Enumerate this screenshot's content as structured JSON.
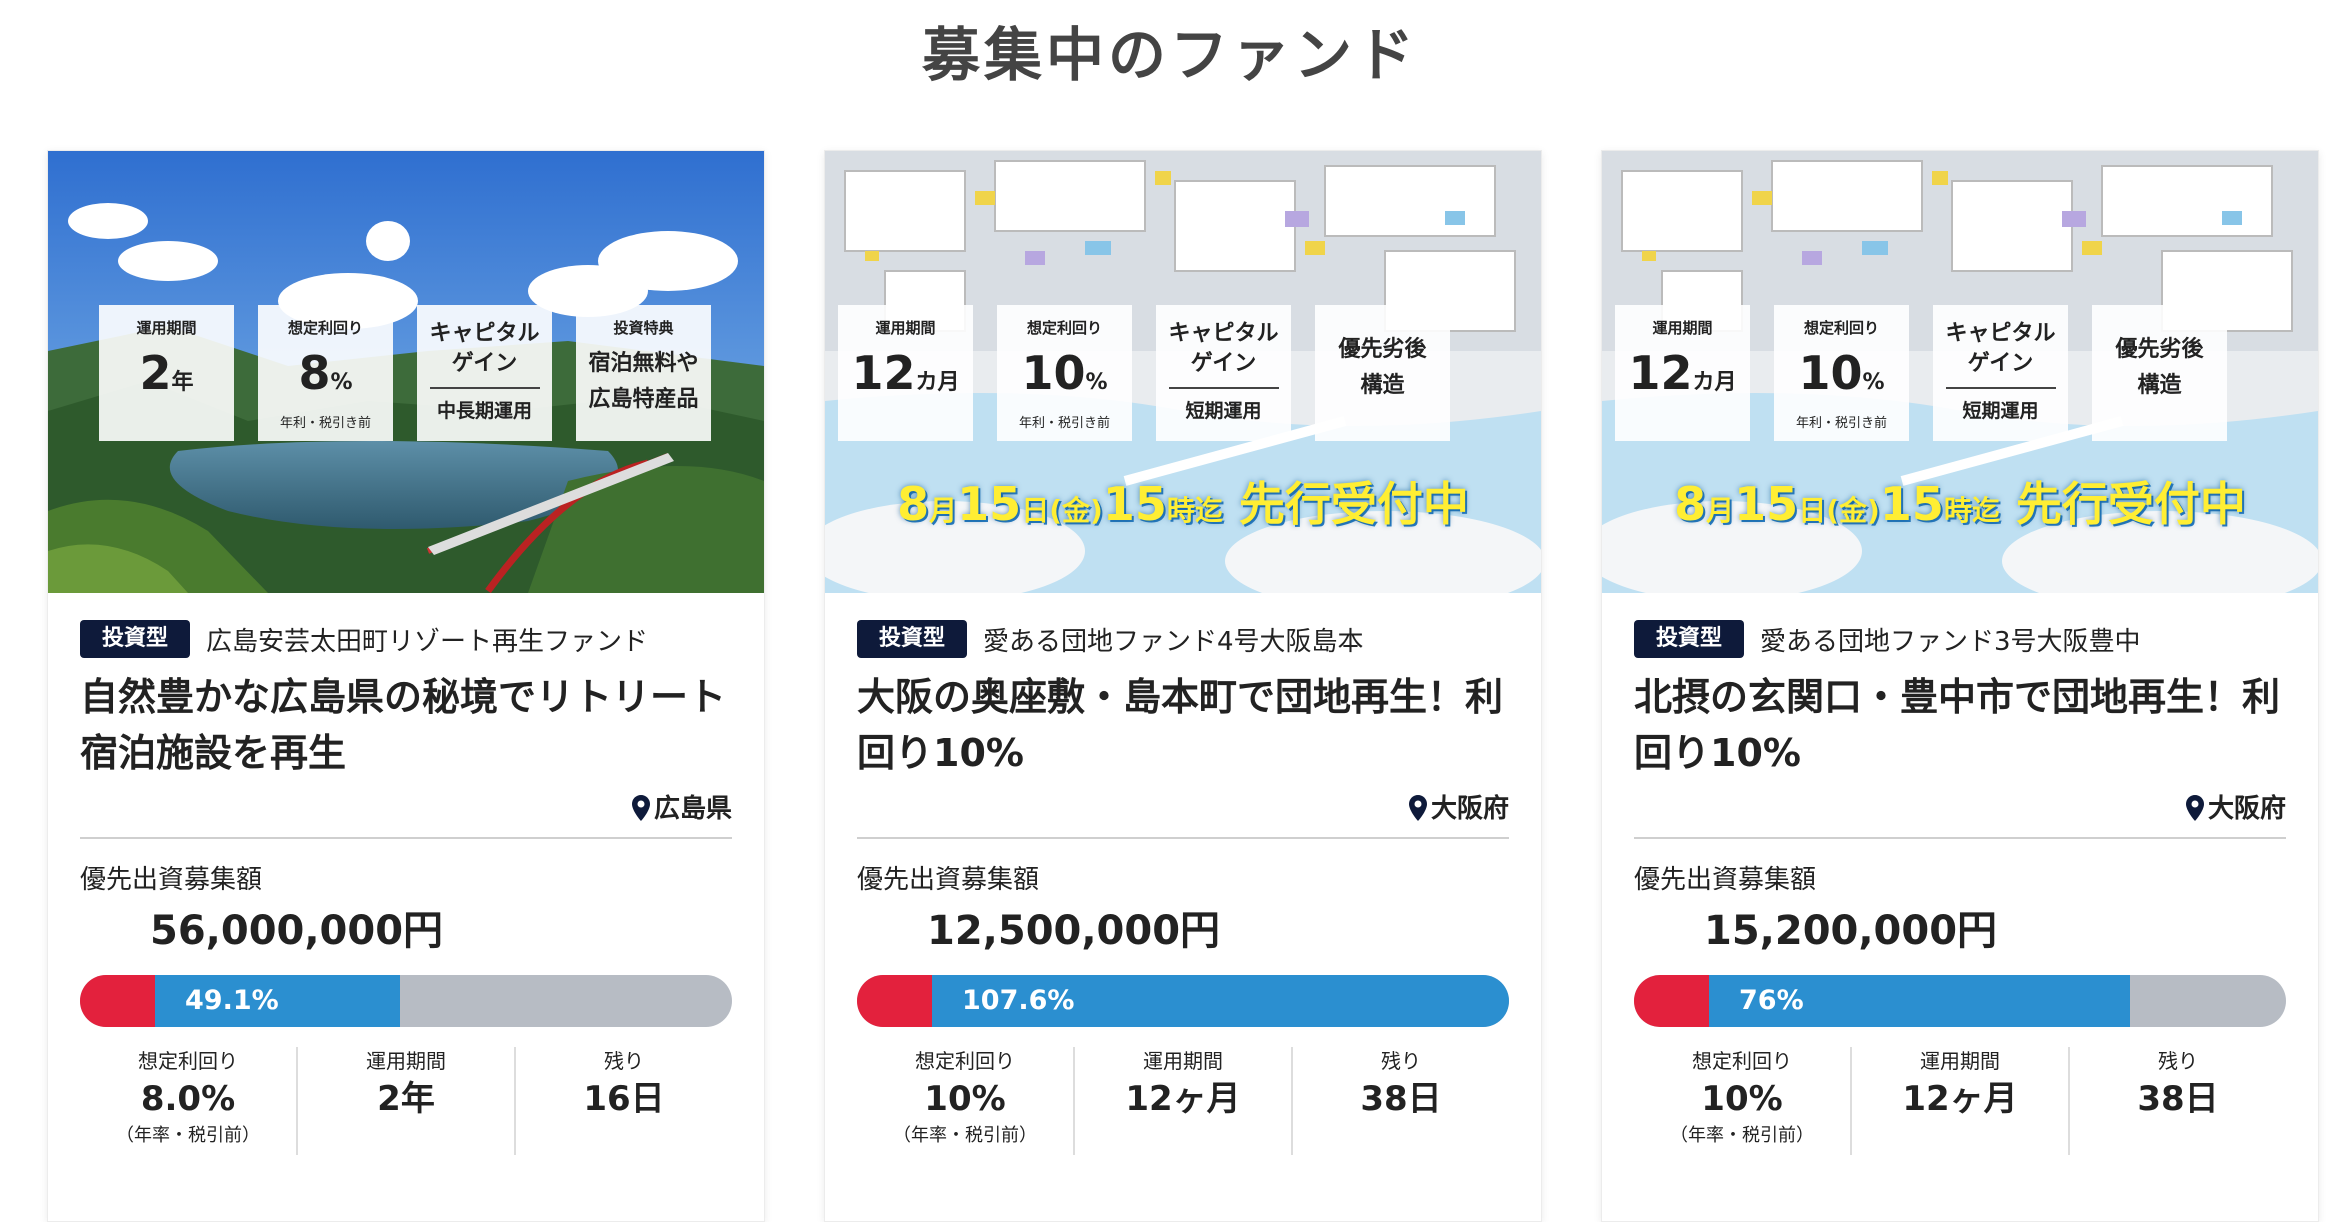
{
  "page": {
    "title": "募集中のファンド"
  },
  "colors": {
    "accent_blue": "#2b8fd0",
    "accent_red": "#e3213d",
    "tag_bg": "#0e1a3a",
    "progress_bg": "#b7bcc4"
  },
  "cards": [
    {
      "image": {
        "box1": {
          "caption": "運用期間",
          "value": "2",
          "unit": "年"
        },
        "box2": {
          "caption": "想定利回り",
          "value": "8",
          "unit": "%",
          "note": "年利・税引き前"
        },
        "box3": {
          "top": "キャピタル",
          "top2": "ゲイン",
          "sub": "中長期運用"
        },
        "box4": {
          "caption": "投資特典",
          "line1": "宿泊無料や",
          "line2": "広島特産品"
        }
      },
      "type_tag": "投資型",
      "fund_name": "広島安芸太田町リゾート再生ファンド",
      "catch": "自然豊かな広島県の秘境でリトリート宿泊施設を再生",
      "location": "広島県",
      "amount_label": "優先出資募集額",
      "amount": "56,000,000円",
      "progress_text": "49.1%",
      "progress_ratio": 0.491,
      "stats": [
        {
          "label": "想定利回り",
          "value": "8.0%",
          "note": "（年率・税引前）"
        },
        {
          "label": "運用期間",
          "value": "2年",
          "note": ""
        },
        {
          "label": "残り",
          "value": "16日",
          "note": ""
        }
      ]
    },
    {
      "image": {
        "box1": {
          "caption": "運用期間",
          "value": "12",
          "unit": "カ月"
        },
        "box2": {
          "caption": "想定利回り",
          "value": "10",
          "unit": "%",
          "note": "年利・税引き前"
        },
        "box3": {
          "top": "キャピタル",
          "top2": "ゲイン",
          "sub": "短期運用"
        },
        "box4": {
          "line1": "優先劣後",
          "line2": "構造"
        },
        "banner": {
          "month": "8",
          "m_unit": "月",
          "day": "15",
          "d_unit": "日",
          "dow": "(金)",
          "hour": "15",
          "h_unit": "時迄",
          "text": "先行受付中"
        }
      },
      "type_tag": "投資型",
      "fund_name": "愛ある団地ファンド4号大阪島本",
      "catch": "大阪の奥座敷・島本町で団地再生！利回り10%",
      "location": "大阪府",
      "amount_label": "優先出資募集額",
      "amount": "12,500,000円",
      "progress_text": "107.6%",
      "progress_ratio": 1.0,
      "stats": [
        {
          "label": "想定利回り",
          "value": "10%",
          "note": "（年率・税引前）"
        },
        {
          "label": "運用期間",
          "value": "12ヶ月",
          "note": ""
        },
        {
          "label": "残り",
          "value": "38日",
          "note": ""
        }
      ]
    },
    {
      "image": {
        "box1": {
          "caption": "運用期間",
          "value": "12",
          "unit": "カ月"
        },
        "box2": {
          "caption": "想定利回り",
          "value": "10",
          "unit": "%",
          "note": "年利・税引き前"
        },
        "box3": {
          "top": "キャピタル",
          "top2": "ゲイン",
          "sub": "短期運用"
        },
        "box4": {
          "line1": "優先劣後",
          "line2": "構造"
        },
        "banner": {
          "month": "8",
          "m_unit": "月",
          "day": "15",
          "d_unit": "日",
          "dow": "(金)",
          "hour": "15",
          "h_unit": "時迄",
          "text": "先行受付中"
        }
      },
      "type_tag": "投資型",
      "fund_name": "愛ある団地ファンド3号大阪豊中",
      "catch": "北摂の玄関口・豊中市で団地再生！利回り10%",
      "location": "大阪府",
      "amount_label": "優先出資募集額",
      "amount": "15,200,000円",
      "progress_text": "76%",
      "progress_ratio": 0.76,
      "stats": [
        {
          "label": "想定利回り",
          "value": "10%",
          "note": "（年率・税引前）"
        },
        {
          "label": "運用期間",
          "value": "12ヶ月",
          "note": ""
        },
        {
          "label": "残り",
          "value": "38日",
          "note": ""
        }
      ]
    }
  ]
}
